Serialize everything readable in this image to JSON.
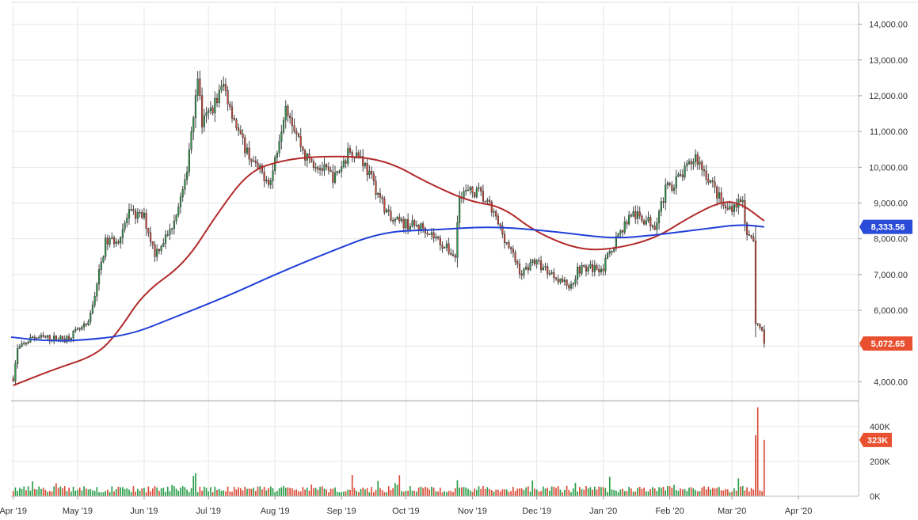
{
  "chart_data": {
    "type": "candlestick",
    "price_axis": {
      "ticks": [
        "4,000.00",
        "5,000.00",
        "6,000.00",
        "7,000.00",
        "8,000.00",
        "9,000.00",
        "10,000.00",
        "11,000.00",
        "12,000.00",
        "13,000.00",
        "14,000.00"
      ],
      "range": [
        3500,
        14500
      ]
    },
    "volume_axis": {
      "ticks": [
        "0K",
        "200K",
        "400K"
      ],
      "range": [
        0,
        540
      ]
    },
    "x_axis": {
      "labels": [
        "Apr '19",
        "May '19",
        "Jun '19",
        "Jul '19",
        "Aug '19",
        "Sep '19",
        "Oct '19",
        "Nov '19",
        "Dec '19",
        "Jan '20",
        "Feb '20",
        "Mar '20",
        "Apr '20"
      ],
      "range": [
        "2019-03-31",
        "2020-04-29"
      ]
    },
    "price_anchors": [
      [
        "2019-04-01",
        4100
      ],
      [
        "2019-04-03",
        4900
      ],
      [
        "2019-04-10",
        5250
      ],
      [
        "2019-04-25",
        5200
      ],
      [
        "2019-05-06",
        5600
      ],
      [
        "2019-05-14",
        7900
      ],
      [
        "2019-05-20",
        8000
      ],
      [
        "2019-05-25",
        8700
      ],
      [
        "2019-06-01",
        8600
      ],
      [
        "2019-06-06",
        7600
      ],
      [
        "2019-06-13",
        8200
      ],
      [
        "2019-06-20",
        9500
      ],
      [
        "2019-06-26",
        12600
      ],
      [
        "2019-06-28",
        11200
      ],
      [
        "2019-07-04",
        11800
      ],
      [
        "2019-07-08",
        12300
      ],
      [
        "2019-07-16",
        10800
      ],
      [
        "2019-07-23",
        10000
      ],
      [
        "2019-07-30",
        9600
      ],
      [
        "2019-08-06",
        11800
      ],
      [
        "2019-08-15",
        10300
      ],
      [
        "2019-08-29",
        9700
      ],
      [
        "2019-09-05",
        10500
      ],
      [
        "2019-09-10",
        10300
      ],
      [
        "2019-09-24",
        8500
      ],
      [
        "2019-10-10",
        8300
      ],
      [
        "2019-10-24",
        7500
      ],
      [
        "2019-10-26",
        9300
      ],
      [
        "2019-11-04",
        9300
      ],
      [
        "2019-11-10",
        8800
      ],
      [
        "2019-11-24",
        7000
      ],
      [
        "2019-11-29",
        7400
      ],
      [
        "2019-12-17",
        6650
      ],
      [
        "2019-12-20",
        7150
      ],
      [
        "2020-01-01",
        7200
      ],
      [
        "2020-01-07",
        8000
      ],
      [
        "2020-01-14",
        8700
      ],
      [
        "2020-01-25",
        8400
      ],
      [
        "2020-01-30",
        9350
      ],
      [
        "2020-02-07",
        9800
      ],
      [
        "2020-02-13",
        10300
      ],
      [
        "2020-02-20",
        9600
      ],
      [
        "2020-02-27",
        8800
      ],
      [
        "2020-03-06",
        9100
      ],
      [
        "2020-03-08",
        8000
      ],
      [
        "2020-03-11",
        7900
      ],
      [
        "2020-03-12",
        5700
      ],
      [
        "2020-03-15",
        5400
      ],
      [
        "2020-03-16",
        5072.65
      ]
    ],
    "series": [
      {
        "kind": "volume",
        "spikes": [
          [
            "2020-03-12",
            350
          ],
          [
            "2020-03-13",
            510
          ],
          [
            "2020-03-16",
            323
          ]
        ]
      },
      {
        "kind": "moving-average",
        "color": "#b22a2a",
        "points": [
          [
            "2019-04-01",
            3900
          ],
          [
            "2019-04-20",
            4350
          ],
          [
            "2019-05-10",
            4750
          ],
          [
            "2019-05-20",
            5400
          ],
          [
            "2019-06-01",
            6500
          ],
          [
            "2019-06-20",
            7300
          ],
          [
            "2019-07-05",
            8700
          ],
          [
            "2019-07-20",
            9900
          ],
          [
            "2019-08-05",
            10200
          ],
          [
            "2019-08-20",
            10300
          ],
          [
            "2019-09-10",
            10300
          ],
          [
            "2019-09-25",
            10100
          ],
          [
            "2019-10-10",
            9600
          ],
          [
            "2019-10-30",
            9050
          ],
          [
            "2019-11-15",
            8900
          ],
          [
            "2019-11-30",
            8200
          ],
          [
            "2019-12-20",
            7700
          ],
          [
            "2020-01-05",
            7700
          ],
          [
            "2020-01-25",
            8000
          ],
          [
            "2020-02-10",
            8600
          ],
          [
            "2020-02-25",
            9050
          ],
          [
            "2020-03-05",
            9000
          ],
          [
            "2020-03-16",
            8500
          ]
        ]
      },
      {
        "kind": "moving-average",
        "color": "#2040d8",
        "points": [
          [
            "2019-03-31",
            5250
          ],
          [
            "2019-04-15",
            5150
          ],
          [
            "2019-05-01",
            5150
          ],
          [
            "2019-05-25",
            5300
          ],
          [
            "2019-06-15",
            5800
          ],
          [
            "2019-07-10",
            6400
          ],
          [
            "2019-08-01",
            7000
          ],
          [
            "2019-08-25",
            7600
          ],
          [
            "2019-09-20",
            8200
          ],
          [
            "2019-10-15",
            8250
          ],
          [
            "2019-11-10",
            8350
          ],
          [
            "2019-12-10",
            8200
          ],
          [
            "2020-01-05",
            8000
          ],
          [
            "2020-01-25",
            8100
          ],
          [
            "2020-02-20",
            8300
          ],
          [
            "2020-03-05",
            8400
          ],
          [
            "2020-03-16",
            8333.56
          ]
        ]
      }
    ],
    "markers": [
      {
        "value": "8,333.56",
        "price": 8333.56,
        "color": "#2a4bd7"
      },
      {
        "value": "5,072.65",
        "price": 5072.65,
        "color": "#e8502f"
      },
      {
        "value": "323K",
        "volume": 323,
        "color": "#e8502f"
      }
    ],
    "colors": {
      "up": "#2a9d4a",
      "down": "#d94a36",
      "grid": "#e6e6e6"
    }
  }
}
